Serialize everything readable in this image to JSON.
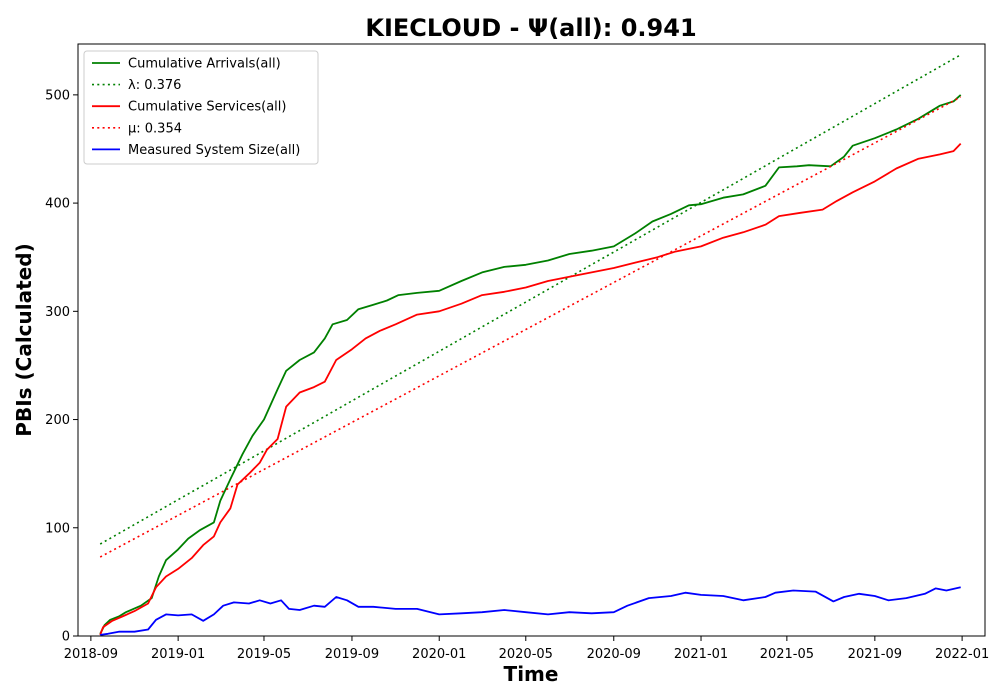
{
  "chart_data": {
    "type": "line",
    "title": "KIECLOUD -  Ψ(all): 0.941",
    "xlabel": "Time",
    "ylabel": "PBIs (Calculated)",
    "xlim": [
      "2018-08-14",
      "2022-02-02"
    ],
    "ylim": [
      0,
      547
    ],
    "x_ticks": [
      "2018-09",
      "2019-01",
      "2019-05",
      "2019-09",
      "2020-01",
      "2020-05",
      "2020-09",
      "2021-01",
      "2021-05",
      "2021-09",
      "2022-01"
    ],
    "y_ticks": [
      0,
      100,
      200,
      300,
      400,
      500
    ],
    "legend_position": "top-left",
    "series": [
      {
        "name": "Cumulative Arrivals(all)",
        "style": "solid",
        "color": "#008000",
        "points": [
          [
            "2018-09-14",
            2
          ],
          [
            "2018-09-20",
            10
          ],
          [
            "2018-09-28",
            15
          ],
          [
            "2018-10-10",
            18
          ],
          [
            "2018-10-20",
            22
          ],
          [
            "2018-11-10",
            28
          ],
          [
            "2018-11-25",
            35
          ],
          [
            "2018-12-05",
            55
          ],
          [
            "2018-12-15",
            70
          ],
          [
            "2019-01-01",
            80
          ],
          [
            "2019-01-15",
            90
          ],
          [
            "2019-02-01",
            98
          ],
          [
            "2019-02-20",
            105
          ],
          [
            "2019-03-01",
            125
          ],
          [
            "2019-03-15",
            145
          ],
          [
            "2019-04-01",
            168
          ],
          [
            "2019-04-15",
            185
          ],
          [
            "2019-05-01",
            200
          ],
          [
            "2019-05-20",
            228
          ],
          [
            "2019-06-01",
            245
          ],
          [
            "2019-06-20",
            255
          ],
          [
            "2019-07-10",
            262
          ],
          [
            "2019-07-25",
            275
          ],
          [
            "2019-08-05",
            288
          ],
          [
            "2019-08-25",
            292
          ],
          [
            "2019-09-10",
            302
          ],
          [
            "2019-10-01",
            306
          ],
          [
            "2019-10-20",
            310
          ],
          [
            "2019-11-05",
            315
          ],
          [
            "2019-12-01",
            317
          ],
          [
            "2020-01-01",
            319
          ],
          [
            "2020-02-01",
            328
          ],
          [
            "2020-03-01",
            336
          ],
          [
            "2020-04-01",
            341
          ],
          [
            "2020-05-01",
            343
          ],
          [
            "2020-06-01",
            347
          ],
          [
            "2020-07-01",
            353
          ],
          [
            "2020-08-01",
            356
          ],
          [
            "2020-09-01",
            360
          ],
          [
            "2020-10-01",
            372
          ],
          [
            "2020-10-25",
            383
          ],
          [
            "2020-11-20",
            390
          ],
          [
            "2020-12-15",
            398
          ],
          [
            "2021-01-01",
            399
          ],
          [
            "2021-02-01",
            405
          ],
          [
            "2021-03-01",
            408
          ],
          [
            "2021-04-01",
            416
          ],
          [
            "2021-04-20",
            433
          ],
          [
            "2021-05-15",
            434
          ],
          [
            "2021-06-01",
            435
          ],
          [
            "2021-07-01",
            434
          ],
          [
            "2021-07-20",
            443
          ],
          [
            "2021-08-01",
            453
          ],
          [
            "2021-09-01",
            460
          ],
          [
            "2021-10-01",
            468
          ],
          [
            "2021-11-01",
            478
          ],
          [
            "2021-12-01",
            490
          ],
          [
            "2021-12-20",
            494
          ],
          [
            "2021-12-30",
            500
          ]
        ]
      },
      {
        "name": "λ: 0.376",
        "style": "dotted",
        "color": "#008000",
        "points": [
          [
            "2018-09-14",
            85
          ],
          [
            "2021-12-30",
            537
          ]
        ]
      },
      {
        "name": "Cumulative Services(all)",
        "style": "solid",
        "color": "#ff0000",
        "points": [
          [
            "2018-09-14",
            1
          ],
          [
            "2018-09-18",
            8
          ],
          [
            "2018-10-01",
            14
          ],
          [
            "2018-10-15",
            18
          ],
          [
            "2018-11-01",
            23
          ],
          [
            "2018-11-20",
            30
          ],
          [
            "2018-12-01",
            45
          ],
          [
            "2018-12-15",
            55
          ],
          [
            "2019-01-01",
            62
          ],
          [
            "2019-01-20",
            72
          ],
          [
            "2019-02-05",
            84
          ],
          [
            "2019-02-20",
            92
          ],
          [
            "2019-03-01",
            105
          ],
          [
            "2019-03-15",
            118
          ],
          [
            "2019-03-25",
            140
          ],
          [
            "2019-04-10",
            150
          ],
          [
            "2019-04-25",
            160
          ],
          [
            "2019-05-05",
            172
          ],
          [
            "2019-05-20",
            182
          ],
          [
            "2019-06-01",
            212
          ],
          [
            "2019-06-20",
            225
          ],
          [
            "2019-07-10",
            230
          ],
          [
            "2019-07-25",
            235
          ],
          [
            "2019-08-10",
            255
          ],
          [
            "2019-09-01",
            265
          ],
          [
            "2019-09-20",
            275
          ],
          [
            "2019-10-10",
            282
          ],
          [
            "2019-11-01",
            288
          ],
          [
            "2019-12-01",
            297
          ],
          [
            "2020-01-01",
            300
          ],
          [
            "2020-02-01",
            307
          ],
          [
            "2020-03-01",
            315
          ],
          [
            "2020-04-01",
            318
          ],
          [
            "2020-05-01",
            322
          ],
          [
            "2020-06-01",
            328
          ],
          [
            "2020-07-01",
            332
          ],
          [
            "2020-08-01",
            336
          ],
          [
            "2020-09-01",
            340
          ],
          [
            "2020-10-01",
            345
          ],
          [
            "2020-11-01",
            350
          ],
          [
            "2020-11-25",
            355
          ],
          [
            "2021-01-01",
            360
          ],
          [
            "2021-02-01",
            368
          ],
          [
            "2021-03-01",
            373
          ],
          [
            "2021-04-01",
            380
          ],
          [
            "2021-04-20",
            388
          ],
          [
            "2021-05-20",
            391
          ],
          [
            "2021-06-20",
            394
          ],
          [
            "2021-07-10",
            402
          ],
          [
            "2021-08-01",
            410
          ],
          [
            "2021-09-01",
            420
          ],
          [
            "2021-10-01",
            432
          ],
          [
            "2021-11-01",
            441
          ],
          [
            "2021-12-01",
            445
          ],
          [
            "2021-12-20",
            448
          ],
          [
            "2021-12-30",
            455
          ]
        ]
      },
      {
        "name": "μ: 0.354",
        "style": "dotted",
        "color": "#ff0000",
        "points": [
          [
            "2018-09-14",
            73
          ],
          [
            "2021-12-30",
            498
          ]
        ]
      },
      {
        "name": "Measured System Size(all)",
        "style": "solid",
        "color": "#0000ff",
        "points": [
          [
            "2018-09-14",
            1
          ],
          [
            "2018-09-25",
            2
          ],
          [
            "2018-10-10",
            4
          ],
          [
            "2018-11-01",
            4
          ],
          [
            "2018-11-20",
            6
          ],
          [
            "2018-12-01",
            15
          ],
          [
            "2018-12-15",
            20
          ],
          [
            "2019-01-01",
            19
          ],
          [
            "2019-01-20",
            20
          ],
          [
            "2019-02-05",
            14
          ],
          [
            "2019-02-20",
            20
          ],
          [
            "2019-03-05",
            28
          ],
          [
            "2019-03-20",
            31
          ],
          [
            "2019-04-10",
            30
          ],
          [
            "2019-04-25",
            33
          ],
          [
            "2019-05-10",
            30
          ],
          [
            "2019-05-25",
            33
          ],
          [
            "2019-06-05",
            25
          ],
          [
            "2019-06-20",
            24
          ],
          [
            "2019-07-10",
            28
          ],
          [
            "2019-07-25",
            27
          ],
          [
            "2019-08-10",
            36
          ],
          [
            "2019-08-25",
            33
          ],
          [
            "2019-09-10",
            27
          ],
          [
            "2019-10-01",
            27
          ],
          [
            "2019-11-01",
            25
          ],
          [
            "2019-12-01",
            25
          ],
          [
            "2020-01-01",
            20
          ],
          [
            "2020-02-01",
            21
          ],
          [
            "2020-03-01",
            22
          ],
          [
            "2020-04-01",
            24
          ],
          [
            "2020-05-01",
            22
          ],
          [
            "2020-06-01",
            20
          ],
          [
            "2020-07-01",
            22
          ],
          [
            "2020-08-01",
            21
          ],
          [
            "2020-09-01",
            22
          ],
          [
            "2020-09-20",
            28
          ],
          [
            "2020-10-20",
            35
          ],
          [
            "2020-11-20",
            37
          ],
          [
            "2020-12-10",
            40
          ],
          [
            "2021-01-01",
            38
          ],
          [
            "2021-02-01",
            37
          ],
          [
            "2021-03-01",
            33
          ],
          [
            "2021-04-01",
            36
          ],
          [
            "2021-04-15",
            40
          ],
          [
            "2021-05-10",
            42
          ],
          [
            "2021-06-10",
            41
          ],
          [
            "2021-07-05",
            32
          ],
          [
            "2021-07-20",
            36
          ],
          [
            "2021-08-10",
            39
          ],
          [
            "2021-09-01",
            37
          ],
          [
            "2021-09-20",
            33
          ],
          [
            "2021-10-15",
            35
          ],
          [
            "2021-11-10",
            39
          ],
          [
            "2021-11-25",
            44
          ],
          [
            "2021-12-10",
            42
          ],
          [
            "2021-12-30",
            45
          ]
        ]
      }
    ]
  }
}
